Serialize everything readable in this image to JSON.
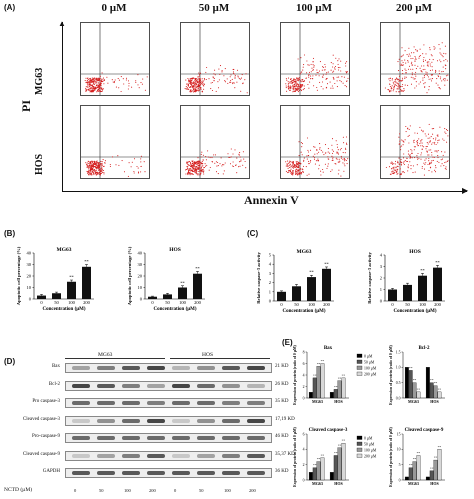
{
  "panel_a": {
    "label": "(A)",
    "conditions": [
      "0 µM",
      "50 µM",
      "100 µM",
      "200 µM"
    ],
    "cell_lines": [
      "MG63",
      "HOS"
    ],
    "y_axis": "PI",
    "x_axis": "Annexin V"
  },
  "panel_b": {
    "label": "(B)",
    "charts": [
      {
        "title": "MG63",
        "ylabel": "Apoptotic cell percentage (%)",
        "xlabel": "Concentration (µM)",
        "categories": [
          "0",
          "50",
          "100",
          "200"
        ],
        "values": [
          3,
          5,
          15,
          28
        ],
        "errors": [
          1,
          1,
          1.5,
          2
        ],
        "ylim": [
          0,
          40
        ],
        "yticks": [
          "0",
          "10",
          "20",
          "30",
          "40"
        ],
        "marks": [
          "",
          "",
          "**",
          "**"
        ]
      },
      {
        "title": "HOS",
        "ylabel": "Apoptotic cell percentage (%)",
        "xlabel": "Concentration (µM)",
        "categories": [
          "0",
          "50",
          "100",
          "200"
        ],
        "values": [
          2,
          4,
          10,
          22
        ],
        "errors": [
          0.5,
          1,
          1.5,
          2
        ],
        "ylim": [
          0,
          40
        ],
        "yticks": [
          "0",
          "10",
          "20",
          "30",
          "40"
        ],
        "marks": [
          "",
          "",
          "**",
          "**"
        ]
      }
    ]
  },
  "panel_c": {
    "label": "(C)",
    "charts": [
      {
        "title": "MG63",
        "ylabel": "Relative caspase-3 activity",
        "xlabel": "Concentration (µM)",
        "categories": [
          "0",
          "50",
          "100",
          "200"
        ],
        "values": [
          1.0,
          1.6,
          2.6,
          3.5
        ],
        "errors": [
          0.1,
          0.2,
          0.2,
          0.2
        ],
        "ylim": [
          0,
          5
        ],
        "yticks": [
          "0",
          "1",
          "2",
          "3",
          "4",
          "5"
        ],
        "marks": [
          "",
          "",
          "**",
          "**"
        ]
      },
      {
        "title": "HOS",
        "ylabel": "Relative caspase-3 activity",
        "xlabel": "Concentration (µM)",
        "categories": [
          "0",
          "50",
          "100",
          "200"
        ],
        "values": [
          1.0,
          1.4,
          2.2,
          2.9
        ],
        "errors": [
          0.1,
          0.15,
          0.2,
          0.2
        ],
        "ylim": [
          0,
          4
        ],
        "yticks": [
          "0",
          "1",
          "2",
          "3",
          "4"
        ],
        "marks": [
          "",
          "",
          "**",
          "**"
        ]
      }
    ]
  },
  "panel_d": {
    "label": "(D)",
    "groups": [
      "MG63",
      "HOS"
    ],
    "rows": [
      {
        "name": "Bax",
        "kd": "21 KD"
      },
      {
        "name": "Bcl-2",
        "kd": "26 KD"
      },
      {
        "name": "Pro caspase-3",
        "kd": "35 KD"
      },
      {
        "name": "Cleaved caspase-3",
        "kd": "17,19 KD"
      },
      {
        "name": "Pro-caspase-9",
        "kd": "46 KD"
      },
      {
        "name": "Cleaved caspase-9",
        "kd": "35,37 KD"
      },
      {
        "name": "GAPDH",
        "kd": "36 KD"
      }
    ],
    "nctd_label": "NCTD (µM)",
    "lanes": [
      "0",
      "50",
      "100",
      "200",
      "0",
      "50",
      "100",
      "200"
    ]
  },
  "panel_e": {
    "label": "(E)",
    "legend": [
      "0 µM",
      "50 µM",
      "100 µM",
      "200 µM"
    ],
    "legend_colors": [
      "#000000",
      "#555555",
      "#999999",
      "#d8d8d8"
    ],
    "ylabel": "Expression of protein (ratio of 0 µM)",
    "charts": [
      {
        "title": "Bax",
        "groups": [
          "MG63",
          "HOS"
        ],
        "ylim": [
          0,
          8
        ],
        "yticks": [
          "0",
          "2",
          "4",
          "6",
          "8"
        ],
        "series": [
          [
            1,
            1
          ],
          [
            3.5,
            1.5
          ],
          [
            5.5,
            3
          ],
          [
            6,
            3.5
          ]
        ],
        "marks": [
          "",
          "**",
          "**",
          "**"
        ]
      },
      {
        "title": "Bcl-2",
        "groups": [
          "MG63",
          "HOS"
        ],
        "ylim": [
          0,
          1.5
        ],
        "yticks": [
          "0.0",
          "0.5",
          "1.0",
          "1.5"
        ],
        "series": [
          [
            1,
            1
          ],
          [
            0.9,
            0.5
          ],
          [
            0.5,
            0.4
          ],
          [
            0.2,
            0.2
          ]
        ],
        "marks": [
          "",
          "**",
          "**",
          "**"
        ]
      },
      {
        "title": "Cleaved caspase-3",
        "groups": [
          "MG63",
          "HOS"
        ],
        "ylim": [
          0,
          6
        ],
        "yticks": [
          "0",
          "2",
          "4",
          "6"
        ],
        "series": [
          [
            1,
            1
          ],
          [
            1.6,
            3.2
          ],
          [
            2.4,
            4.2
          ],
          [
            2.9,
            4.8
          ]
        ],
        "marks": [
          "",
          "**",
          "**",
          "**"
        ]
      },
      {
        "title": "Cleaved caspase-9",
        "groups": [
          "MG63",
          "HOS"
        ],
        "ylim": [
          0,
          15
        ],
        "yticks": [
          "0",
          "5",
          "10",
          "15"
        ],
        "series": [
          [
            1,
            1
          ],
          [
            4,
            3
          ],
          [
            6,
            6.5
          ],
          [
            8,
            10
          ]
        ],
        "marks": [
          "",
          "**",
          "**",
          "**"
        ]
      }
    ]
  }
}
